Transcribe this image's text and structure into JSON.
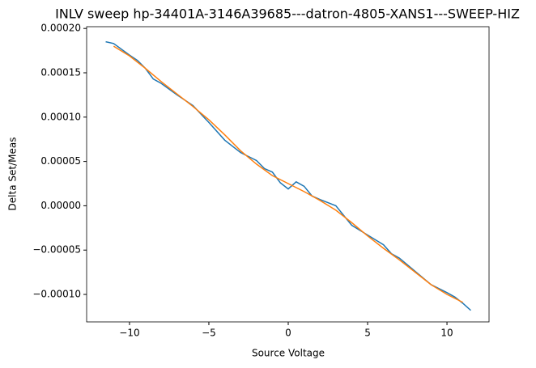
{
  "chart_data": {
    "type": "line",
    "title": "INLV sweep hp-34401A-3146A39685---datron-4805-XANS1---SWEEP-HIZ",
    "xlabel": "Source Voltage",
    "ylabel": "Delta Set/Meas",
    "xlim": [
      -12.7,
      12.65
    ],
    "xticks": [
      {
        "value": -10,
        "label": "−10"
      },
      {
        "value": -5,
        "label": "−5"
      },
      0,
      5,
      10
    ],
    "ylim": [
      -0.000131,
      0.000202
    ],
    "yticks": [
      {
        "value": -0.0001,
        "label": "−0.00010"
      },
      {
        "value": -5e-05,
        "label": "−0.00005"
      },
      {
        "value": 0,
        "label": "0.00000"
      },
      {
        "value": 5e-05,
        "label": "0.00005"
      },
      {
        "value": 0.0001,
        "label": "0.00010"
      },
      {
        "value": 0.00015,
        "label": "0.00015"
      },
      {
        "value": 0.0002,
        "label": "0.00020"
      }
    ],
    "grid": false,
    "series": [
      {
        "color": "#1f77b4",
        "x": [
          -11.5,
          -11,
          -10,
          -9.5,
          -9,
          -8.5,
          -8,
          -7,
          -6,
          -5,
          -4,
          -3,
          -2,
          -1.5,
          -1,
          -0.5,
          0,
          0.5,
          1,
          1.5,
          2,
          3,
          3.5,
          4,
          5,
          6,
          6.5,
          7,
          8,
          9,
          10,
          10.5,
          11,
          11.5
        ],
        "values": [
          0.000185,
          0.000183,
          0.00017,
          0.000164,
          0.000155,
          0.000143,
          0.000138,
          0.000125,
          0.000113,
          9.4e-05,
          7.4e-05,
          6e-05,
          5.1e-05,
          4.2e-05,
          3.8e-05,
          2.6e-05,
          1.9e-05,
          2.7e-05,
          2.2e-05,
          1.1e-05,
          7e-06,
          0,
          -1.1e-05,
          -2.2e-05,
          -3.3e-05,
          -4.4e-05,
          -5.4e-05,
          -5.9e-05,
          -7.4e-05,
          -8.9e-05,
          -9.8e-05,
          -0.000103,
          -0.00011,
          -0.000118
        ]
      },
      {
        "color": "#ff7f0e",
        "x": [
          -11,
          -10,
          -9,
          -8,
          -7,
          -6,
          -5,
          -4,
          -3,
          -2,
          -1,
          0,
          1,
          2,
          3,
          4,
          5,
          6,
          7,
          8,
          9,
          10,
          11
        ],
        "values": [
          0.00018,
          0.000169,
          0.000155,
          0.00014,
          0.000126,
          0.000112,
          9.7e-05,
          8e-05,
          6.2e-05,
          4.7e-05,
          3.4e-05,
          2.5e-05,
          1.6e-05,
          6e-06,
          -5e-06,
          -1.9e-05,
          -3.4e-05,
          -4.8e-05,
          -6.1e-05,
          -7.5e-05,
          -8.9e-05,
          -0.0001,
          -0.000109
        ]
      }
    ]
  }
}
